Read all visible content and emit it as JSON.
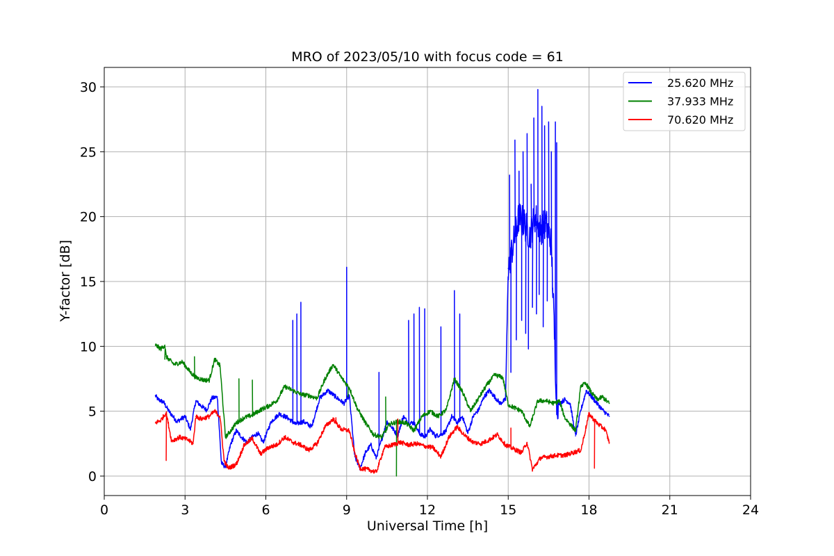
{
  "chart_data": {
    "type": "line",
    "title": "MRO of 2023/05/10 with focus code = 61",
    "xlabel": "Universal Time [h]",
    "ylabel": "Y-factor [dB]",
    "xlim": [
      0,
      24
    ],
    "ylim": [
      -1.5,
      31.5
    ],
    "xticks": [
      0,
      3,
      6,
      9,
      12,
      15,
      18,
      21,
      24
    ],
    "yticks": [
      0,
      5,
      10,
      15,
      20,
      25,
      30
    ],
    "grid": true,
    "legend_position": "top-right",
    "series": [
      {
        "name": "25.620 MHz",
        "color": "#0000ff",
        "x": [
          1.9,
          2.0,
          2.2,
          2.4,
          2.7,
          3.0,
          3.2,
          3.4,
          3.6,
          3.8,
          4.0,
          4.2,
          4.35,
          4.5,
          4.7,
          4.9,
          5.1,
          5.3,
          5.5,
          5.7,
          5.9,
          6.2,
          6.5,
          6.8,
          7.1,
          7.4,
          7.7,
          8.0,
          8.3,
          8.6,
          8.9,
          9.1,
          9.3,
          9.5,
          9.7,
          9.9,
          10.1,
          10.3,
          10.5,
          10.7,
          10.9,
          11.1,
          11.3,
          11.5,
          11.7,
          11.9,
          12.1,
          12.3,
          12.5,
          12.7,
          12.9,
          13.1,
          13.3,
          13.5,
          13.7,
          13.9,
          14.1,
          14.3,
          14.5,
          14.7,
          14.9,
          15.0,
          15.2,
          15.4,
          15.6,
          15.8,
          16.0,
          16.2,
          16.4,
          16.6,
          16.8,
          16.9,
          17.1,
          17.3,
          17.5,
          17.7,
          17.9,
          18.1,
          18.3,
          18.5,
          18.75
        ],
        "y": [
          6.2,
          5.9,
          5.7,
          5.0,
          4.2,
          4.6,
          3.6,
          5.8,
          5.4,
          5.1,
          6.0,
          6.1,
          1.0,
          0.7,
          2.5,
          3.5,
          3.0,
          2.6,
          3.0,
          3.3,
          2.6,
          4.2,
          4.8,
          4.5,
          4.0,
          4.2,
          3.8,
          6.0,
          6.6,
          6.1,
          5.6,
          6.2,
          1.5,
          0.6,
          1.8,
          2.4,
          1.4,
          2.8,
          4.2,
          3.7,
          3.1,
          4.6,
          4.1,
          4.1,
          3.3,
          3.0,
          3.6,
          3.1,
          3.2,
          3.5,
          4.6,
          4.1,
          4.6,
          3.3,
          4.6,
          5.1,
          6.1,
          6.6,
          6.1,
          5.6,
          5.9,
          16.0,
          18.0,
          20.0,
          19.5,
          18.5,
          20.0,
          19.0,
          19.5,
          18.0,
          5.6,
          5.6,
          5.9,
          5.6,
          3.1,
          5.1,
          6.6,
          6.1,
          5.6,
          5.1,
          4.6
        ],
        "spikes": [
          {
            "x": 7.0,
            "y": 12.0
          },
          {
            "x": 7.15,
            "y": 12.5
          },
          {
            "x": 7.3,
            "y": 13.4
          },
          {
            "x": 9.0,
            "y": 16.1
          },
          {
            "x": 10.2,
            "y": 8.0
          },
          {
            "x": 11.3,
            "y": 12.0
          },
          {
            "x": 11.5,
            "y": 12.5
          },
          {
            "x": 11.7,
            "y": 13.0
          },
          {
            "x": 11.9,
            "y": 12.9
          },
          {
            "x": 12.5,
            "y": 11.5
          },
          {
            "x": 13.0,
            "y": 14.3
          },
          {
            "x": 13.2,
            "y": 12.5
          },
          {
            "x": 15.05,
            "y": 23.2
          },
          {
            "x": 15.25,
            "y": 25.9
          },
          {
            "x": 15.4,
            "y": 23.5
          },
          {
            "x": 15.55,
            "y": 25.0
          },
          {
            "x": 15.7,
            "y": 26.4
          },
          {
            "x": 15.85,
            "y": 22.5
          },
          {
            "x": 15.95,
            "y": 27.6
          },
          {
            "x": 16.1,
            "y": 29.8
          },
          {
            "x": 16.25,
            "y": 28.5
          },
          {
            "x": 16.35,
            "y": 27.0
          },
          {
            "x": 16.5,
            "y": 27.3
          },
          {
            "x": 16.6,
            "y": 25.0
          },
          {
            "x": 16.75,
            "y": 27.3
          },
          {
            "x": 16.8,
            "y": 25.7
          }
        ],
        "dips": [
          {
            "x": 15.1,
            "y": 8.0
          },
          {
            "x": 15.3,
            "y": 10.5
          },
          {
            "x": 15.5,
            "y": 12.0
          },
          {
            "x": 15.65,
            "y": 11.0
          },
          {
            "x": 15.75,
            "y": 9.8
          },
          {
            "x": 15.9,
            "y": 13.0
          },
          {
            "x": 16.05,
            "y": 12.5
          },
          {
            "x": 16.15,
            "y": 14.0
          },
          {
            "x": 16.3,
            "y": 11.5
          },
          {
            "x": 16.45,
            "y": 13.5
          },
          {
            "x": 16.65,
            "y": 14.5
          }
        ]
      },
      {
        "name": "37.933 MHz",
        "color": "#008000",
        "x": [
          1.9,
          2.1,
          2.25,
          2.3,
          2.6,
          2.9,
          3.2,
          3.4,
          3.7,
          3.9,
          4.1,
          4.3,
          4.5,
          4.7,
          4.9,
          5.2,
          5.5,
          5.8,
          6.1,
          6.4,
          6.7,
          7.0,
          7.3,
          7.6,
          7.9,
          8.2,
          8.5,
          8.8,
          9.1,
          9.4,
          9.7,
          10.0,
          10.3,
          10.6,
          10.9,
          11.2,
          11.5,
          11.8,
          12.1,
          12.4,
          12.7,
          13.0,
          13.3,
          13.6,
          13.9,
          14.2,
          14.5,
          14.8,
          15.0,
          15.2,
          15.5,
          15.8,
          16.1,
          16.4,
          16.7,
          16.9,
          17.1,
          17.3,
          17.5,
          17.7,
          17.9,
          18.1,
          18.3,
          18.5,
          18.75
        ],
        "y": [
          10.1,
          9.8,
          10.1,
          9.2,
          8.6,
          8.8,
          8.0,
          7.6,
          7.4,
          7.4,
          9.0,
          8.5,
          3.0,
          3.5,
          4.1,
          4.5,
          4.7,
          5.1,
          5.4,
          5.8,
          6.9,
          6.6,
          6.3,
          6.2,
          6.0,
          7.5,
          8.6,
          7.6,
          6.8,
          5.2,
          4.1,
          3.2,
          3.0,
          4.0,
          4.2,
          4.1,
          3.5,
          4.6,
          5.0,
          4.6,
          5.1,
          7.5,
          6.5,
          5.0,
          6.0,
          7.0,
          7.8,
          7.6,
          5.5,
          5.3,
          5.0,
          3.8,
          5.8,
          5.8,
          5.6,
          5.8,
          4.5,
          4.0,
          3.5,
          7.0,
          7.1,
          6.4,
          5.9,
          6.1,
          5.6
        ],
        "spikes": [
          {
            "x": 2.25,
            "y": 9.0
          },
          {
            "x": 3.35,
            "y": 9.2
          },
          {
            "x": 5.0,
            "y": 7.5
          },
          {
            "x": 5.5,
            "y": 7.4
          },
          {
            "x": 9.05,
            "y": 6.1
          },
          {
            "x": 10.45,
            "y": 6.1
          }
        ],
        "dips": [
          {
            "x": 10.85,
            "y": 0.0
          }
        ]
      },
      {
        "name": "70.620 MHz",
        "color": "#ff0000",
        "x": [
          1.9,
          2.1,
          2.3,
          2.5,
          2.8,
          3.1,
          3.3,
          3.4,
          3.6,
          3.9,
          4.1,
          4.3,
          4.45,
          4.6,
          4.9,
          5.2,
          5.5,
          5.8,
          6.1,
          6.4,
          6.7,
          7.0,
          7.3,
          7.6,
          7.9,
          8.2,
          8.5,
          8.8,
          9.1,
          9.3,
          9.5,
          9.8,
          10.1,
          10.4,
          10.7,
          11.0,
          11.3,
          11.6,
          11.9,
          12.2,
          12.5,
          12.8,
          13.1,
          13.4,
          13.7,
          14.0,
          14.3,
          14.6,
          14.9,
          15.2,
          15.5,
          15.7,
          15.9,
          16.2,
          16.5,
          16.8,
          17.1,
          17.4,
          17.7,
          18.0,
          18.2,
          18.4,
          18.6,
          18.75
        ],
        "y": [
          4.1,
          4.3,
          4.9,
          2.7,
          3.0,
          2.8,
          2.5,
          4.6,
          4.4,
          4.6,
          5.0,
          4.6,
          1.2,
          0.6,
          0.9,
          2.4,
          2.9,
          1.7,
          2.2,
          2.4,
          3.0,
          2.6,
          2.4,
          2.0,
          2.5,
          3.8,
          4.4,
          3.6,
          3.5,
          1.8,
          0.6,
          0.5,
          0.3,
          2.2,
          2.4,
          2.6,
          2.4,
          2.5,
          2.3,
          2.2,
          1.5,
          3.0,
          3.8,
          3.1,
          2.6,
          2.5,
          2.8,
          3.2,
          2.4,
          2.1,
          1.8,
          2.6,
          0.5,
          1.4,
          1.5,
          1.6,
          1.6,
          1.8,
          2.0,
          4.8,
          4.3,
          3.9,
          3.6,
          2.6
        ],
        "spikes": [
          {
            "x": 2.3,
            "y": 1.2
          },
          {
            "x": 8.6,
            "y": 4.5
          },
          {
            "x": 10.9,
            "y": 4.4
          },
          {
            "x": 15.1,
            "y": 3.7
          }
        ],
        "dips": [
          {
            "x": 18.2,
            "y": 0.6
          }
        ]
      }
    ]
  }
}
